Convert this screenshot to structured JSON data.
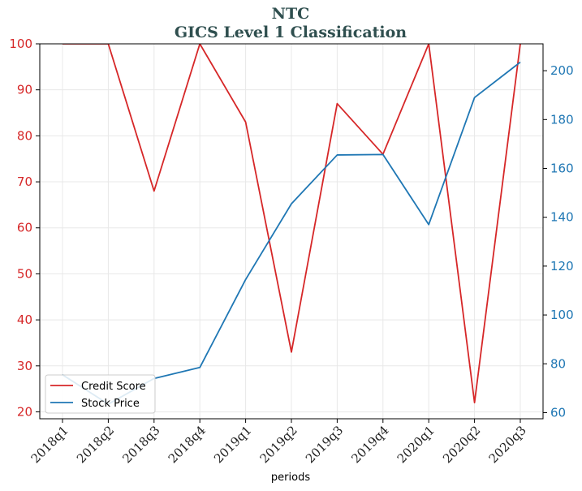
{
  "chart_data": {
    "type": "line",
    "title": "NTC",
    "subtitle": "GICS Level 1 Classification",
    "xlabel": "periods",
    "ylabel_left": "",
    "ylabel_right": "",
    "categories": [
      "2018q1",
      "2018q2",
      "2018q3",
      "2018q4",
      "2019q1",
      "2019q2",
      "2019q3",
      "2019q4",
      "2020q1",
      "2020q2",
      "2020q3"
    ],
    "ylim_left": [
      18.5,
      100
    ],
    "yticks_left": [
      20,
      30,
      40,
      50,
      60,
      70,
      80,
      90,
      100
    ],
    "ylim_right": [
      57.5,
      211
    ],
    "yticks_right": [
      60,
      80,
      100,
      120,
      140,
      160,
      180,
      200
    ],
    "grid": true,
    "legend_position": "lower-left",
    "series": [
      {
        "name": "Credit Score",
        "axis": "left",
        "color": "#d62728",
        "values": [
          100,
          100,
          68,
          100,
          83,
          33,
          87,
          76,
          100,
          22,
          100
        ]
      },
      {
        "name": "Stock Price",
        "axis": "right",
        "color": "#1f77b4",
        "values": [
          75.5,
          63.5,
          74,
          78.5,
          114.5,
          145.5,
          165.5,
          165.7,
          137,
          189,
          203.5
        ]
      }
    ]
  }
}
